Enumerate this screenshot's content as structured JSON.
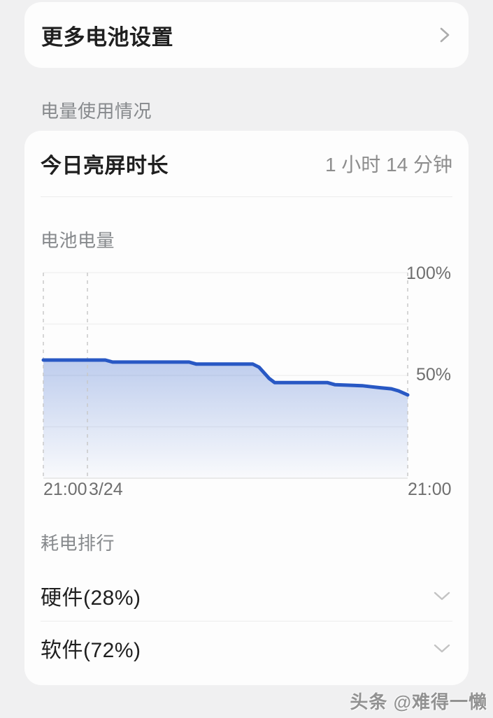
{
  "more_settings": {
    "label": "更多电池设置"
  },
  "sections": {
    "power_usage": "电量使用情况",
    "ranking": "耗电排行"
  },
  "usage": {
    "screen_time_label": "今日亮屏时长",
    "screen_time_value": "1 小时 14 分钟",
    "battery_level_label": "电池电量",
    "hardware_label": "硬件(28%)",
    "software_label": "软件(72%)"
  },
  "chart_data": {
    "type": "area",
    "title": "电池电量",
    "unit": "%",
    "ylim": [
      0,
      100
    ],
    "y_ticks": [
      "100%",
      "50%"
    ],
    "y_gridlines_pct": [
      100,
      75,
      50,
      25
    ],
    "x_ticks": [
      "21:00",
      "3/24",
      "21:00"
    ],
    "legend": "none",
    "grid": "faint horizontal lines, dashed vertical markers at start, 3/24 and end",
    "series": [
      {
        "name": "电池电量",
        "points_t_pct": [
          [
            0,
            57.5
          ],
          [
            0.17,
            57.5
          ],
          [
            0.19,
            56.5
          ],
          [
            0.4,
            56.5
          ],
          [
            0.42,
            55.5
          ],
          [
            0.575,
            55.5
          ],
          [
            0.592,
            54
          ],
          [
            0.62,
            48.5
          ],
          [
            0.635,
            46.5
          ],
          [
            0.78,
            46.5
          ],
          [
            0.8,
            45.5
          ],
          [
            0.875,
            45
          ],
          [
            0.9,
            44.5
          ],
          [
            0.925,
            44
          ],
          [
            0.955,
            43.5
          ],
          [
            0.975,
            42.5
          ],
          [
            1,
            40.5
          ]
        ]
      }
    ],
    "line_color": "#2858c4",
    "fill_top_color": "rgba(42,92,201,0.30)",
    "fill_bottom_color": "rgba(42,92,201,0.02)",
    "vline_positions_t": [
      0,
      0.121,
      1
    ]
  },
  "colors": {
    "background": "#f0f0f1",
    "card": "#fdfdfd",
    "title_text": "#1f1f1f",
    "secondary_text": "#86898c",
    "value_text": "#8d8d8d",
    "axis_text": "#6f6f6f",
    "divider": "#ececec",
    "gridline": "#f1f1f2",
    "baseline": "#e3e3e3",
    "dashed_line": "#c9c9c9",
    "chevron": "#acacac"
  },
  "icons": {
    "chevron_right": "chevron-right",
    "chevron_down": "chevron-down"
  },
  "watermark": {
    "text": "头条 @难得一懒"
  }
}
